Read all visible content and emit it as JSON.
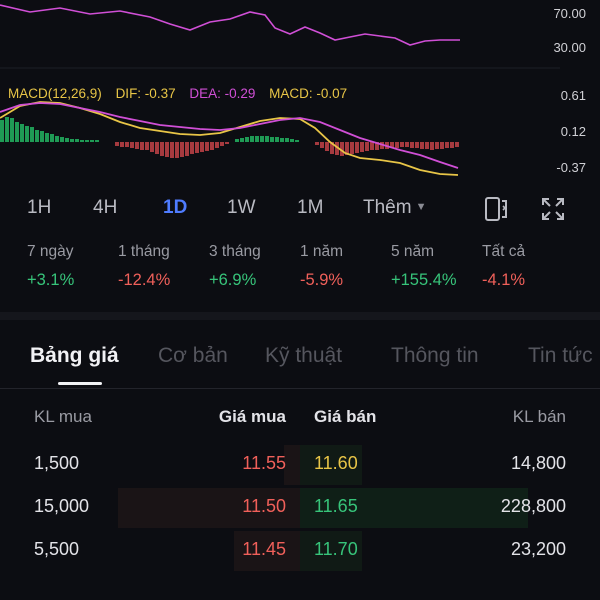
{
  "chart": {
    "axis_labels": [
      "70.00",
      "30.00",
      "0.61",
      "0.12",
      "-0.37"
    ],
    "macd_legend": {
      "name": "MACD(12,26,9)",
      "dif": "DIF: -0.37",
      "dea": "DEA: -0.29",
      "macd": "MACD: -0.07"
    },
    "colors": {
      "macd_name": "#e8c547",
      "dif": "#e8c547",
      "dea": "#d04fd6",
      "macd": "#e8c547",
      "rsi": "#d04fd6",
      "hist_up": "#1f9a55",
      "hist_down": "#a63a3f"
    }
  },
  "timeframes": {
    "items": [
      "1H",
      "4H",
      "1D",
      "1W",
      "1M"
    ],
    "active": "1D",
    "more_label": "Thêm"
  },
  "periods": [
    {
      "label": "7 ngày",
      "value": "+3.1%",
      "trend": "up"
    },
    {
      "label": "1 tháng",
      "value": "-12.4%",
      "trend": "down"
    },
    {
      "label": "3 tháng",
      "value": "+6.9%",
      "trend": "up"
    },
    {
      "label": "1 năm",
      "value": "-5.9%",
      "trend": "down"
    },
    {
      "label": "5 năm",
      "value": "+155.4%",
      "trend": "up"
    },
    {
      "label": "Tất cả",
      "value": "-4.1%",
      "trend": "down"
    }
  ],
  "tabs": [
    "Bảng giá",
    "Cơ bản",
    "Kỹ thuật",
    "Thông tin",
    "Tin tức"
  ],
  "order_book": {
    "headers": {
      "bid_volume": "KL mua",
      "bid_price": "Giá mua",
      "ask_price": "Giá bán",
      "ask_volume": "KL bán"
    },
    "rows": [
      {
        "bid_volume": "1,500",
        "bid_price": "11.55",
        "ask_price": "11.60",
        "ask_volume": "14,800"
      },
      {
        "bid_volume": "15,000",
        "bid_price": "11.50",
        "ask_price": "11.65",
        "ask_volume": "228,800"
      },
      {
        "bid_volume": "5,500",
        "bid_price": "11.45",
        "ask_price": "11.70",
        "ask_volume": "23,200"
      }
    ],
    "colors": {
      "bid_price": "#f0605a",
      "ask_first": "#e8c547",
      "ask_price": "#37c47a"
    }
  }
}
